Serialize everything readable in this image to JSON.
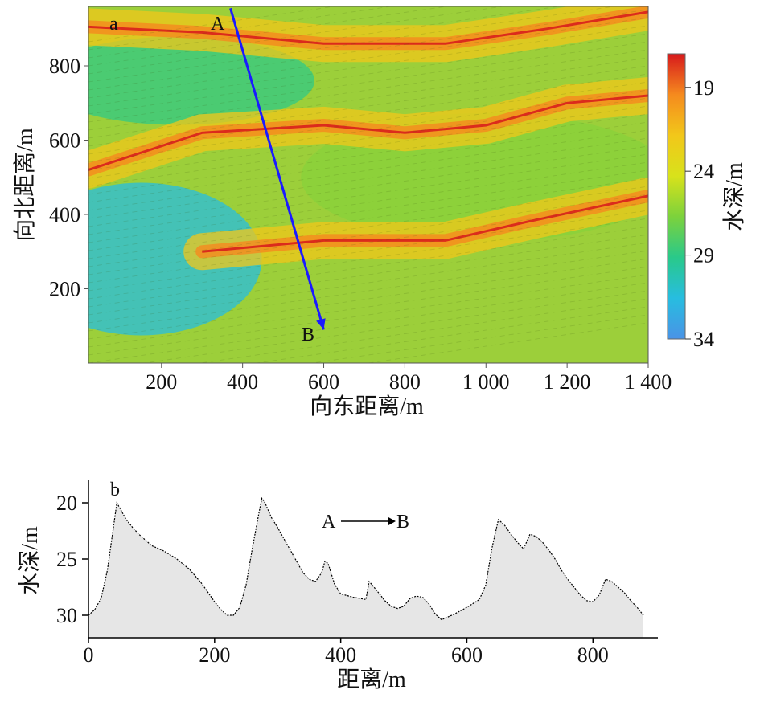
{
  "chart_data": [
    {
      "panel_label": "a",
      "type": "heatmap",
      "xlabel": "向东距离/m",
      "ylabel": "向北距离/m",
      "xlim": [
        20,
        1400
      ],
      "ylim": [
        0,
        960
      ],
      "x_ticks": [
        200,
        400,
        600,
        800,
        1000,
        1200,
        1400
      ],
      "x_tick_labels": [
        "200",
        "400",
        "600",
        "800",
        "1 000",
        "1 200",
        "1 400"
      ],
      "y_ticks": [
        200,
        400,
        600,
        800
      ],
      "y_tick_labels": [
        "200",
        "400",
        "600",
        "800"
      ],
      "colorbar": {
        "label": "水深/m",
        "range": [
          17,
          34
        ],
        "reversed": true,
        "ticks": [
          19,
          24,
          29,
          34
        ],
        "tick_labels": [
          "19",
          "24",
          "29",
          "34"
        ],
        "colors": [
          "#d7191c",
          "#f58a1e",
          "#f2c71a",
          "#d8e21b",
          "#7cd23c",
          "#29c98a",
          "#27bde0",
          "#4a93e6"
        ]
      },
      "profile_line": {
        "start_label": "A",
        "end_label": "B",
        "start": [
          370,
          955
        ],
        "end": [
          600,
          90
        ],
        "color": "#1a1aff"
      },
      "ridges": [
        {
          "name": "ridge-north",
          "points": [
            [
              20,
              905
            ],
            [
              300,
              890
            ],
            [
              600,
              860
            ],
            [
              900,
              860
            ],
            [
              1150,
              900
            ],
            [
              1400,
              945
            ]
          ]
        },
        {
          "name": "ridge-middle",
          "points": [
            [
              20,
              520
            ],
            [
              300,
              620
            ],
            [
              600,
              640
            ],
            [
              800,
              620
            ],
            [
              1000,
              640
            ],
            [
              1200,
              700
            ],
            [
              1400,
              720
            ]
          ]
        },
        {
          "name": "ridge-south",
          "points": [
            [
              300,
              300
            ],
            [
              600,
              330
            ],
            [
              900,
              330
            ],
            [
              1100,
              380
            ],
            [
              1400,
              450
            ]
          ]
        }
      ]
    },
    {
      "panel_label": "b",
      "type": "area",
      "xlabel": "距离/m",
      "ylabel": "水深/m",
      "annotation": "A——B",
      "annotation_from": "A",
      "annotation_to": "B",
      "xlim": [
        0,
        880
      ],
      "ylim": [
        32,
        18
      ],
      "y_inverted": true,
      "x_ticks": [
        0,
        200,
        400,
        600,
        800
      ],
      "x_tick_labels": [
        "0",
        "200",
        "400",
        "600",
        "800"
      ],
      "y_ticks": [
        20,
        25,
        30
      ],
      "y_tick_labels": [
        "20",
        "25",
        "30"
      ],
      "fill_color": "#e6e6e6",
      "x": [
        0,
        10,
        20,
        30,
        40,
        45,
        50,
        60,
        70,
        80,
        90,
        100,
        120,
        140,
        160,
        180,
        200,
        210,
        220,
        230,
        240,
        250,
        260,
        270,
        275,
        280,
        290,
        300,
        320,
        340,
        350,
        360,
        370,
        375,
        380,
        390,
        400,
        420,
        440,
        445,
        450,
        460,
        470,
        480,
        490,
        500,
        510,
        520,
        530,
        540,
        550,
        560,
        580,
        600,
        620,
        630,
        640,
        650,
        660,
        670,
        680,
        690,
        700,
        710,
        720,
        730,
        740,
        750,
        760,
        770,
        780,
        790,
        800,
        810,
        820,
        830,
        840,
        850,
        860,
        870,
        880
      ],
      "y": [
        30.0,
        29.5,
        28.5,
        26.0,
        22.0,
        20.0,
        20.5,
        21.5,
        22.2,
        22.8,
        23.3,
        23.8,
        24.3,
        25.0,
        25.9,
        27.2,
        28.8,
        29.5,
        30.0,
        30.0,
        29.3,
        27.3,
        24.0,
        21.0,
        19.6,
        20.0,
        21.3,
        22.2,
        24.2,
        26.2,
        26.8,
        27.0,
        26.2,
        25.2,
        25.4,
        27.2,
        28.1,
        28.4,
        28.6,
        27.0,
        27.3,
        28.0,
        28.7,
        29.2,
        29.4,
        29.2,
        28.5,
        28.3,
        28.4,
        29.0,
        29.9,
        30.4,
        29.9,
        29.3,
        28.6,
        27.3,
        24.0,
        21.5,
        22.0,
        22.8,
        23.5,
        24.1,
        22.8,
        23.0,
        23.5,
        24.2,
        25.0,
        26.0,
        26.8,
        27.5,
        28.2,
        28.7,
        28.8,
        28.2,
        26.8,
        27.0,
        27.5,
        28.0,
        28.7,
        29.3,
        30.0
      ]
    }
  ]
}
